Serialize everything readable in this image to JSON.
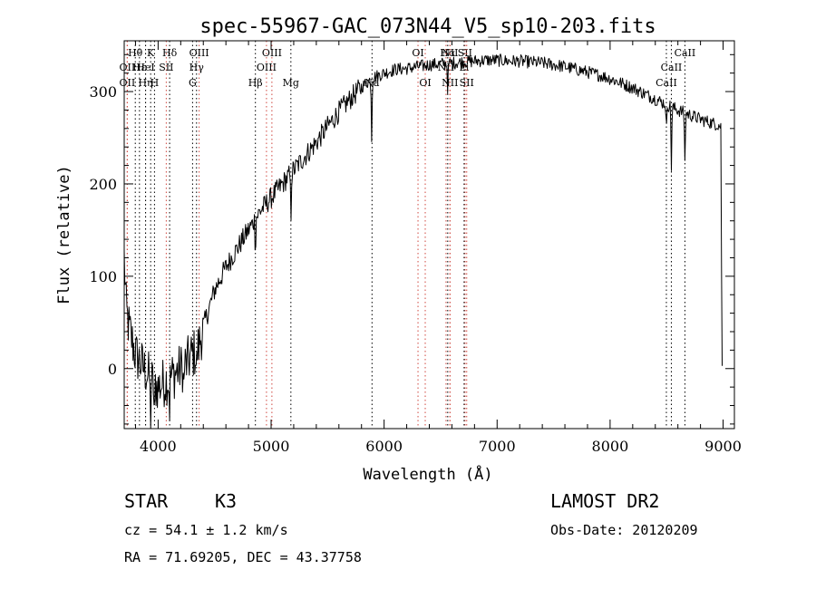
{
  "chart_data": {
    "type": "line",
    "title": "spec-55967-GAC_073N44_V5_sp10-203.fits",
    "xlabel": "Wavelength (Å)",
    "ylabel": "Flux (relative)",
    "xlim": [
      3700,
      9100
    ],
    "ylim": [
      -65,
      355
    ],
    "x_ticks": [
      4000,
      5000,
      6000,
      7000,
      8000,
      9000
    ],
    "y_ticks": [
      0,
      100,
      200,
      300
    ],
    "grid": false,
    "series": [
      {
        "color": "#000000",
        "anchors": [
          [
            3700,
            120
          ],
          [
            3720,
            60
          ],
          [
            3750,
            40
          ],
          [
            3800,
            15
          ],
          [
            3850,
            5
          ],
          [
            3900,
            -5
          ],
          [
            3950,
            -15
          ],
          [
            4000,
            -20
          ],
          [
            4050,
            -15
          ],
          [
            4100,
            -10
          ],
          [
            4150,
            -5
          ],
          [
            4200,
            0
          ],
          [
            4250,
            5
          ],
          [
            4300,
            15
          ],
          [
            4350,
            20
          ],
          [
            4400,
            45
          ],
          [
            4450,
            65
          ],
          [
            4500,
            85
          ],
          [
            4600,
            110
          ],
          [
            4700,
            130
          ],
          [
            4800,
            150
          ],
          [
            4900,
            170
          ],
          [
            5000,
            185
          ],
          [
            5100,
            200
          ],
          [
            5200,
            215
          ],
          [
            5300,
            230
          ],
          [
            5400,
            245
          ],
          [
            5500,
            262
          ],
          [
            5600,
            278
          ],
          [
            5700,
            292
          ],
          [
            5800,
            305
          ],
          [
            5900,
            315
          ],
          [
            6000,
            320
          ],
          [
            6100,
            324
          ],
          [
            6200,
            325
          ],
          [
            6300,
            327
          ],
          [
            6400,
            329
          ],
          [
            6500,
            330
          ],
          [
            6600,
            331
          ],
          [
            6700,
            332
          ],
          [
            6800,
            333
          ],
          [
            6900,
            334
          ],
          [
            7000,
            334
          ],
          [
            7100,
            333
          ],
          [
            7200,
            333
          ],
          [
            7300,
            332
          ],
          [
            7400,
            331
          ],
          [
            7500,
            329
          ],
          [
            7600,
            327
          ],
          [
            7700,
            324
          ],
          [
            7800,
            321
          ],
          [
            7900,
            318
          ],
          [
            8000,
            314
          ],
          [
            8100,
            309
          ],
          [
            8200,
            304
          ],
          [
            8300,
            298
          ],
          [
            8400,
            292
          ],
          [
            8500,
            286
          ],
          [
            8600,
            280
          ],
          [
            8700,
            275
          ],
          [
            8800,
            270
          ],
          [
            8900,
            266
          ],
          [
            8960,
            264
          ],
          [
            8980,
            262
          ],
          [
            8990,
            5
          ],
          [
            8995,
            0
          ]
        ],
        "absorption_dips": [
          [
            3933,
            -55
          ],
          [
            3968,
            -50
          ],
          [
            4101,
            -35
          ],
          [
            4226,
            -30
          ],
          [
            4340,
            -25
          ],
          [
            4861,
            -35
          ],
          [
            5175,
            -50
          ],
          [
            5890,
            -65
          ],
          [
            6563,
            -30
          ],
          [
            8498,
            -35
          ],
          [
            8542,
            -65
          ],
          [
            8662,
            -55
          ]
        ]
      }
    ]
  },
  "line_markers": [
    {
      "wavelength": 3798,
      "label": "Hθ",
      "row": 0,
      "color": "#000000"
    },
    {
      "wavelength": 3934,
      "label": "K",
      "row": 0,
      "color": "#000000"
    },
    {
      "wavelength": 4102,
      "label": "Hδ",
      "row": 0,
      "color": "#000000"
    },
    {
      "wavelength": 4363,
      "label": "OIII",
      "row": 0,
      "color": "#d0473f"
    },
    {
      "wavelength": 5007,
      "label": "OIII",
      "row": 0,
      "color": "#d0473f"
    },
    {
      "wavelength": 6300,
      "label": "OI",
      "row": 0,
      "color": "#d0473f"
    },
    {
      "wavelength": 6563,
      "label": "Hα",
      "row": 0,
      "color": "#000000"
    },
    {
      "wavelength": 6583,
      "label": "NII",
      "row": 0,
      "color": "#d0473f"
    },
    {
      "wavelength": 6716,
      "label": "SII",
      "row": 0,
      "color": "#d0473f"
    },
    {
      "wavelength": 8662,
      "label": "CaII",
      "row": 0,
      "color": "#000000"
    },
    {
      "wavelength": 3727,
      "label": "OII",
      "row": 1,
      "color": "#d0473f"
    },
    {
      "wavelength": 3835,
      "label": "Hε",
      "row": 1,
      "color": "#000000"
    },
    {
      "wavelength": 3889,
      "label": "HeI",
      "row": 1,
      "color": "#000000"
    },
    {
      "wavelength": 4072,
      "label": "SII",
      "row": 1,
      "color": "#d0473f"
    },
    {
      "wavelength": 4340,
      "label": "Hγ",
      "row": 1,
      "color": "#000000"
    },
    {
      "wavelength": 4959,
      "label": "OIII",
      "row": 1,
      "color": "#d0473f"
    },
    {
      "wavelength": 6548,
      "label": "NII",
      "row": 1,
      "color": "#d0473f"
    },
    {
      "wavelength": 6708,
      "label": "Li",
      "row": 1,
      "color": "#000000"
    },
    {
      "wavelength": 8542,
      "label": "CaII",
      "row": 1,
      "color": "#000000"
    },
    {
      "wavelength": 3727,
      "label": "OII",
      "row": 2,
      "color": "#d0473f"
    },
    {
      "wavelength": 3889,
      "label": "Hη",
      "row": 2,
      "color": "#000000"
    },
    {
      "wavelength": 3968,
      "label": "H",
      "row": 2,
      "color": "#000000"
    },
    {
      "wavelength": 4305,
      "label": "G",
      "row": 2,
      "color": "#000000"
    },
    {
      "wavelength": 4861,
      "label": "Hβ",
      "row": 2,
      "color": "#000000"
    },
    {
      "wavelength": 5175,
      "label": "Mg",
      "row": 2,
      "color": "#000000"
    },
    {
      "wavelength": 5893,
      "label": "Na",
      "row": 2,
      "color": "#000000"
    },
    {
      "wavelength": 6364,
      "label": "OI",
      "row": 2,
      "color": "#d0473f"
    },
    {
      "wavelength": 6583,
      "label": "NII",
      "row": 2,
      "color": "#d0473f"
    },
    {
      "wavelength": 6731,
      "label": "SII",
      "row": 2,
      "color": "#d0473f"
    },
    {
      "wavelength": 8498,
      "label": "CaII",
      "row": 2,
      "color": "#000000"
    }
  ],
  "info": {
    "class_label": "STAR",
    "subclass": "K3",
    "survey": "LAMOST DR2",
    "cz": "cz = 54.1 ± 1.2 km/s",
    "obs_date": "Obs-Date: 20120209",
    "coords": "RA =  71.69205, DEC =  43.37758"
  }
}
